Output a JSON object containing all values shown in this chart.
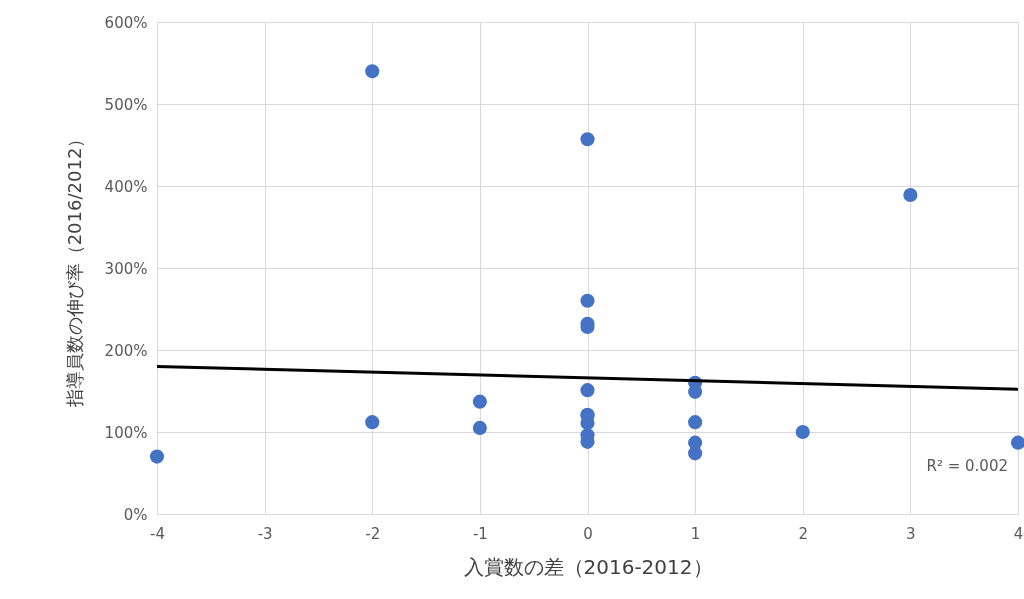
{
  "chart_data": {
    "type": "scatter",
    "xlabel": "入賞数の差（2016-2012）",
    "ylabel": "指導員数の伸び率（2016/2012）",
    "xlim": [
      -4,
      4
    ],
    "xticks": [
      -4,
      -3,
      -2,
      -1,
      0,
      1,
      2,
      3,
      4
    ],
    "ylim": [
      0,
      600
    ],
    "yticks": [
      {
        "value": 0,
        "label": "0%"
      },
      {
        "value": 100,
        "label": "100%"
      },
      {
        "value": 200,
        "label": "200%"
      },
      {
        "value": 300,
        "label": "300%"
      },
      {
        "value": 400,
        "label": "400%"
      },
      {
        "value": 500,
        "label": "500%"
      },
      {
        "value": 600,
        "label": "600%"
      }
    ],
    "grid": true,
    "series": [
      {
        "color": "#4472c4",
        "marker": "circle",
        "x": [
          -4,
          -2,
          -2,
          -1,
          -1,
          0,
          0,
          0,
          0,
          0,
          0,
          0,
          0,
          0,
          0,
          1,
          1,
          1,
          1,
          1,
          2,
          3,
          4
        ],
        "values": [
          70,
          540,
          112,
          137,
          105,
          457,
          260,
          232,
          228,
          151,
          121,
          111,
          96,
          88,
          120,
          160,
          149,
          112,
          87,
          74,
          100,
          389,
          87
        ]
      },
      {
        "type": "line",
        "color": "#000000",
        "x": [
          -4,
          4
        ],
        "values": [
          180,
          152
        ]
      }
    ],
    "annotations": [
      "R² = 0.002"
    ]
  }
}
